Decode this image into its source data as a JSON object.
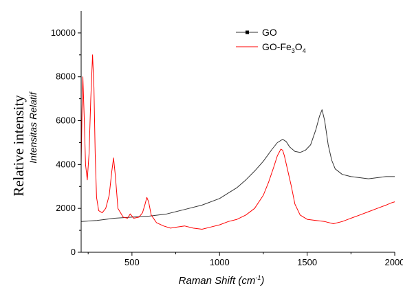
{
  "chart_data": {
    "type": "line",
    "xlabel_prefix": "Raman Shift (cm",
    "xlabel_exp": "-1",
    "xlabel_suffix": ")",
    "ylabel": "Relative intensity",
    "ylabel_secondary": "Intensitas Relatif",
    "xlim": [
      210,
      2000
    ],
    "ylim": [
      0,
      11000
    ],
    "x_ticks": [
      "500",
      "1000",
      "1500",
      "2000"
    ],
    "y_ticks": [
      "0",
      "2000",
      "4000",
      "6000",
      "8000",
      "10000"
    ],
    "legend_position": "top-right",
    "series": [
      {
        "name": "GO",
        "legend_parts": [
          "GO"
        ],
        "color": "#333333",
        "x": [
          210,
          300,
          400,
          500,
          600,
          700,
          800,
          900,
          1000,
          1050,
          1100,
          1150,
          1200,
          1250,
          1300,
          1330,
          1360,
          1380,
          1400,
          1430,
          1460,
          1490,
          1520,
          1550,
          1570,
          1585,
          1600,
          1620,
          1640,
          1660,
          1700,
          1750,
          1800,
          1850,
          1900,
          1950,
          2000
        ],
        "y": [
          1400,
          1450,
          1550,
          1600,
          1650,
          1750,
          1950,
          2150,
          2450,
          2700,
          2950,
          3300,
          3700,
          4150,
          4700,
          5000,
          5150,
          5050,
          4800,
          4600,
          4550,
          4650,
          4900,
          5600,
          6200,
          6500,
          6000,
          4900,
          4200,
          3800,
          3550,
          3450,
          3400,
          3350,
          3400,
          3450,
          3450
        ]
      },
      {
        "name": "GO-Fe3O4",
        "legend_parts": [
          "GO-Fe",
          "3",
          "O",
          "4"
        ],
        "color": "#ff0000",
        "x": [
          210,
          215,
          220,
          228,
          235,
          245,
          255,
          265,
          275,
          283,
          290,
          298,
          310,
          330,
          350,
          370,
          385,
          395,
          405,
          420,
          450,
          475,
          490,
          510,
          540,
          560,
          575,
          585,
          595,
          610,
          640,
          680,
          720,
          760,
          800,
          850,
          900,
          950,
          1000,
          1050,
          1100,
          1150,
          1200,
          1250,
          1280,
          1310,
          1330,
          1350,
          1360,
          1370,
          1390,
          1410,
          1430,
          1460,
          1500,
          1550,
          1600,
          1650,
          1700,
          1750,
          1800,
          1850,
          1900,
          1950,
          1980,
          2000
        ],
        "y": [
          4000,
          6500,
          8000,
          6000,
          4000,
          3300,
          4500,
          7000,
          9000,
          7500,
          4500,
          2500,
          1900,
          1800,
          2000,
          2600,
          3700,
          4300,
          3500,
          2000,
          1600,
          1550,
          1750,
          1550,
          1600,
          1800,
          2200,
          2500,
          2300,
          1700,
          1350,
          1200,
          1100,
          1150,
          1200,
          1100,
          1050,
          1150,
          1250,
          1400,
          1500,
          1700,
          2000,
          2600,
          3200,
          3900,
          4400,
          4700,
          4650,
          4400,
          3700,
          3000,
          2200,
          1700,
          1500,
          1450,
          1400,
          1300,
          1400,
          1550,
          1700,
          1850,
          2000,
          2150,
          2250,
          2300
        ]
      }
    ]
  }
}
